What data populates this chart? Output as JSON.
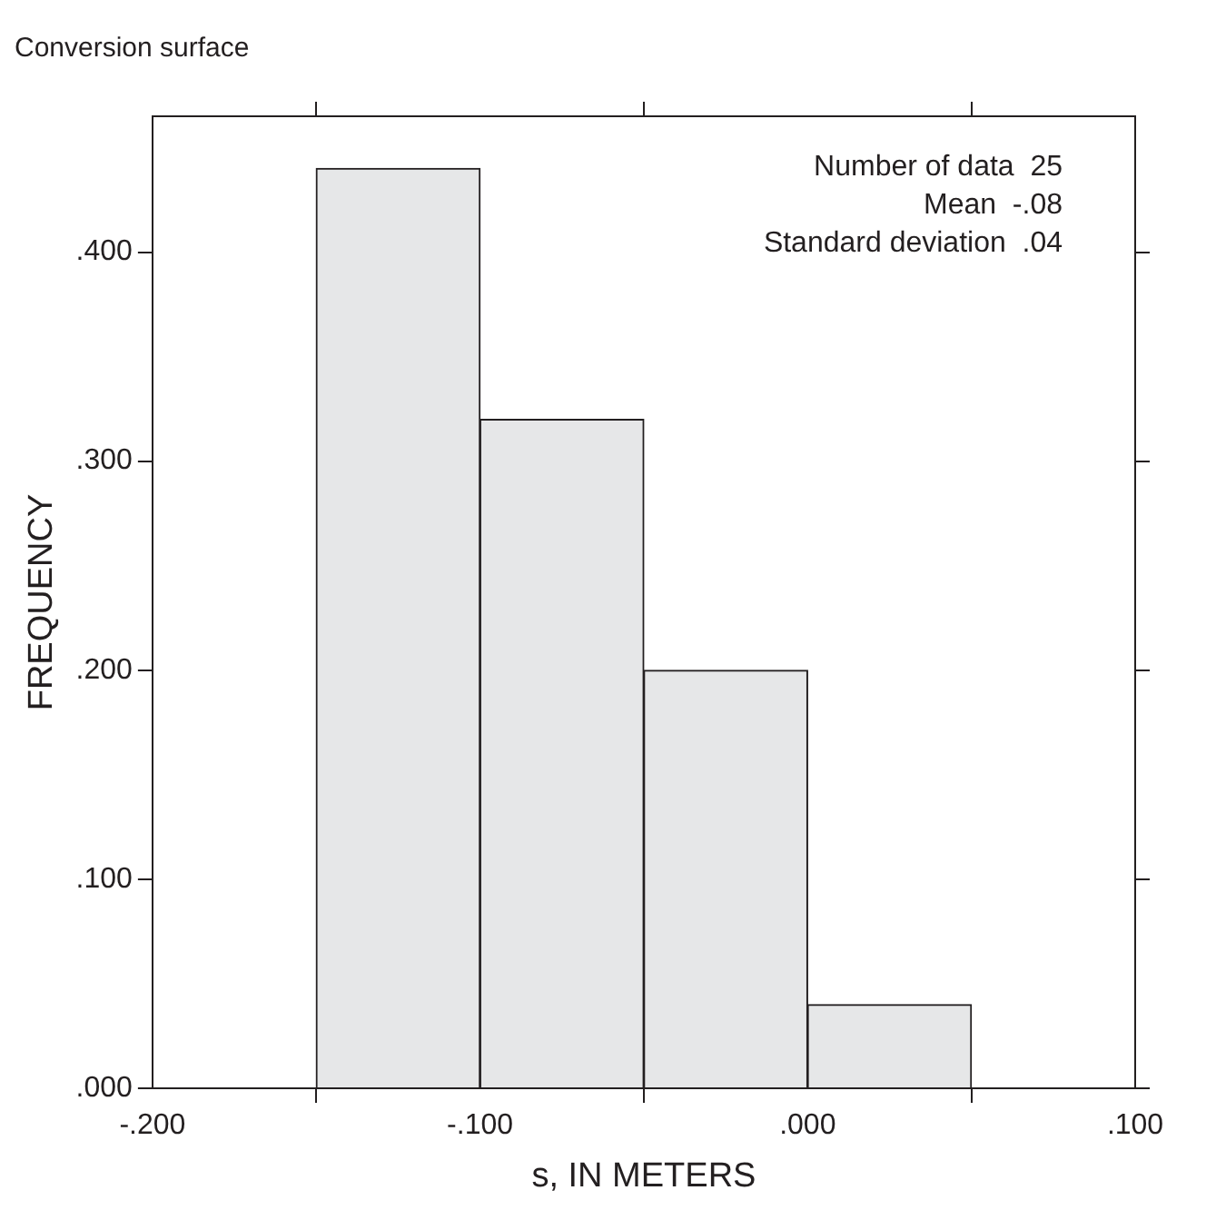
{
  "chart_data": {
    "type": "histogram",
    "title": "Conversion surface",
    "xlabel": "s, IN METERS",
    "ylabel": "FREQUENCY",
    "bins": [
      -0.15,
      -0.1,
      -0.05,
      0,
      0.05
    ],
    "values": [
      0.44,
      0.32,
      0.2,
      0.04
    ],
    "color": "#e6e7e8",
    "xlim": [
      -0.2,
      0.1
    ],
    "xticks": [
      {
        "value": -0.2,
        "label": "-.200"
      },
      {
        "value": -0.1,
        "label": "-.100"
      },
      {
        "value": 0,
        "label": ".000"
      },
      {
        "value": 0.1,
        "label": ".100"
      }
    ],
    "ylim": [
      0,
      0.465
    ],
    "yticks": [
      {
        "value": 0,
        "label": ".000"
      },
      {
        "value": 0.1,
        "label": ".100"
      },
      {
        "value": 0.2,
        "label": ".200"
      },
      {
        "value": 0.3,
        "label": ".300"
      },
      {
        "value": 0.4,
        "label": ".400"
      }
    ],
    "annotations": [
      "Number of data  25",
      "Mean  -.08",
      "Standard deviation  .04"
    ]
  }
}
